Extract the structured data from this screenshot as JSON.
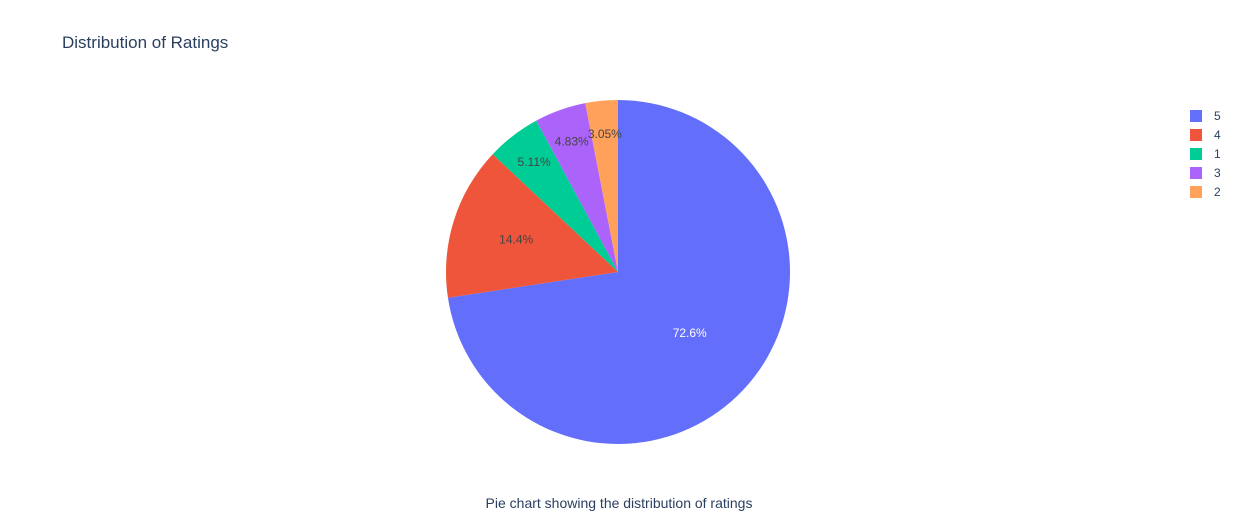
{
  "chart_data": {
    "type": "pie",
    "title": "Distribution of Ratings",
    "caption": "Pie chart showing the distribution of ratings",
    "slices": [
      {
        "label": "5",
        "value": 72.6,
        "text": "72.6%",
        "color": "#636efa",
        "text_color": "#ffffff"
      },
      {
        "label": "4",
        "value": 14.4,
        "text": "14.4%",
        "color": "#ef553b",
        "text_color": "#444444"
      },
      {
        "label": "1",
        "value": 5.11,
        "text": "5.11%",
        "color": "#00cc96",
        "text_color": "#444444"
      },
      {
        "label": "3",
        "value": 4.83,
        "text": "4.83%",
        "color": "#ab63fa",
        "text_color": "#444444"
      },
      {
        "label": "2",
        "value": 3.05,
        "text": "3.05%",
        "color": "#ffa15a",
        "text_color": "#444444"
      }
    ],
    "direction": "clockwise",
    "start_angle": "top",
    "legend_position": "top-right"
  }
}
